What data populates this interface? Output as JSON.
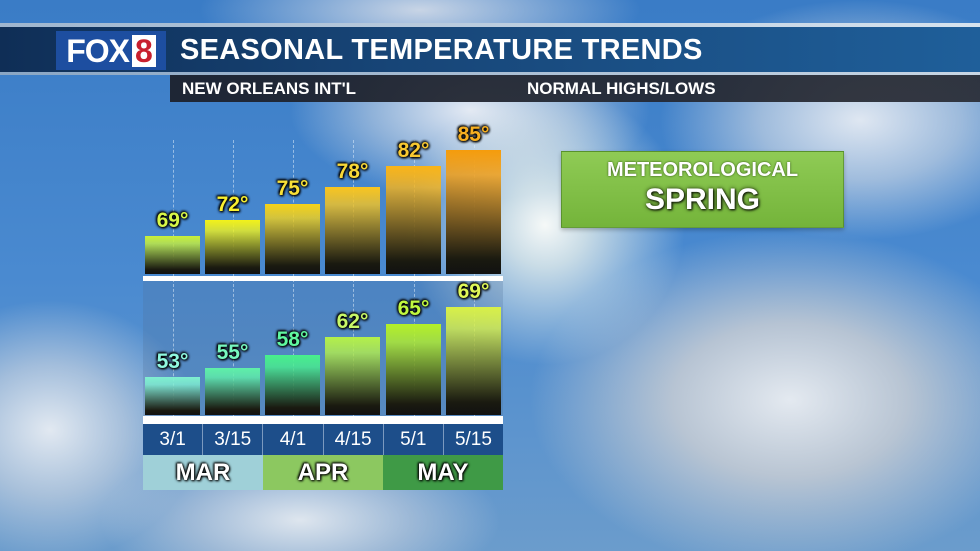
{
  "header": {
    "logo": {
      "text": "FOX",
      "number": "8"
    },
    "title": "SEASONAL TEMPERATURE TRENDS",
    "location": "NEW ORLEANS INT'L",
    "subtitle": "NORMAL HIGHS/LOWS"
  },
  "badge": {
    "line1": "METEOROLOGICAL",
    "line2": "SPRING",
    "color": "#7fbf44"
  },
  "chart_data": {
    "type": "bar",
    "title": "SEASONAL TEMPERATURE TRENDS",
    "subtitle": "NEW ORLEANS INT'L — NORMAL HIGHS/LOWS",
    "categories": [
      "3/1",
      "3/15",
      "4/1",
      "4/15",
      "5/1",
      "5/15"
    ],
    "category_groups": [
      {
        "label": "MAR",
        "span": [
          "3/1",
          "3/15"
        ],
        "color": "#9fd0d8"
      },
      {
        "label": "APR",
        "span": [
          "4/1",
          "4/15"
        ],
        "color": "#8cc860"
      },
      {
        "label": "MAY",
        "span": [
          "5/1",
          "5/15"
        ],
        "color": "#3f9a46"
      }
    ],
    "series": [
      {
        "name": "Normal Highs",
        "unit": "°F",
        "values": [
          69,
          72,
          75,
          78,
          82,
          85
        ],
        "labels": [
          "69°",
          "72°",
          "75°",
          "78°",
          "82°",
          "85°"
        ],
        "colors": [
          "#c8f03a",
          "#f2f21a",
          "#f5d21a",
          "#f8c520",
          "#f9b418",
          "#f59c0c"
        ]
      },
      {
        "name": "Normal Lows",
        "unit": "°F",
        "values": [
          53,
          55,
          58,
          62,
          65,
          69
        ],
        "labels": [
          "53°",
          "55°",
          "58°",
          "62°",
          "65°",
          "69°"
        ],
        "colors": [
          "#7ff0d0",
          "#5ff0a8",
          "#48f08c",
          "#b4f04a",
          "#b4f028",
          "#d8f048"
        ]
      }
    ],
    "xlabel": "",
    "ylabel": "",
    "grid": false,
    "legend": "none"
  }
}
